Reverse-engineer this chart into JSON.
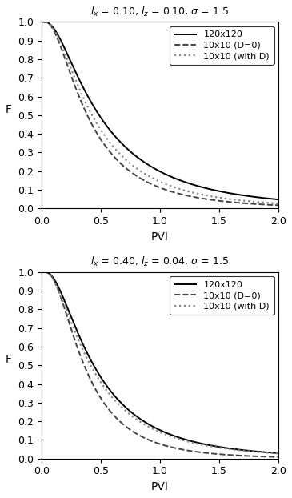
{
  "title_strs": [
    "l_x = 0.10, l_z = 0.10, \\sigma = 1.5",
    "l_x = 0.40, l_z = 0.04, \\sigma = 1.5"
  ],
  "xlabel": "PVI",
  "ylabel": "F",
  "xlim": [
    0,
    2
  ],
  "ylim": [
    0,
    1
  ],
  "xticks": [
    0,
    0.5,
    1.0,
    1.5,
    2.0
  ],
  "yticks": [
    0,
    0.1,
    0.2,
    0.3,
    0.4,
    0.5,
    0.6,
    0.7,
    0.8,
    0.9,
    1.0
  ],
  "legend_labels": [
    "120x120",
    "10x10 (D=0)",
    "10x10 (with D)"
  ],
  "bg_color": "#ffffff",
  "subplot1": {
    "fine": {
      "mu": -0.72,
      "sigma": 0.85
    },
    "D0": {
      "mu": -0.95,
      "sigma": 0.78
    },
    "withD": {
      "mu": -0.85,
      "sigma": 0.8
    }
  },
  "subplot2": {
    "fine": {
      "mu": -0.82,
      "sigma": 0.8
    },
    "D0": {
      "mu": -1.02,
      "sigma": 0.72
    },
    "withD": {
      "mu": -0.88,
      "sigma": 0.82
    }
  }
}
